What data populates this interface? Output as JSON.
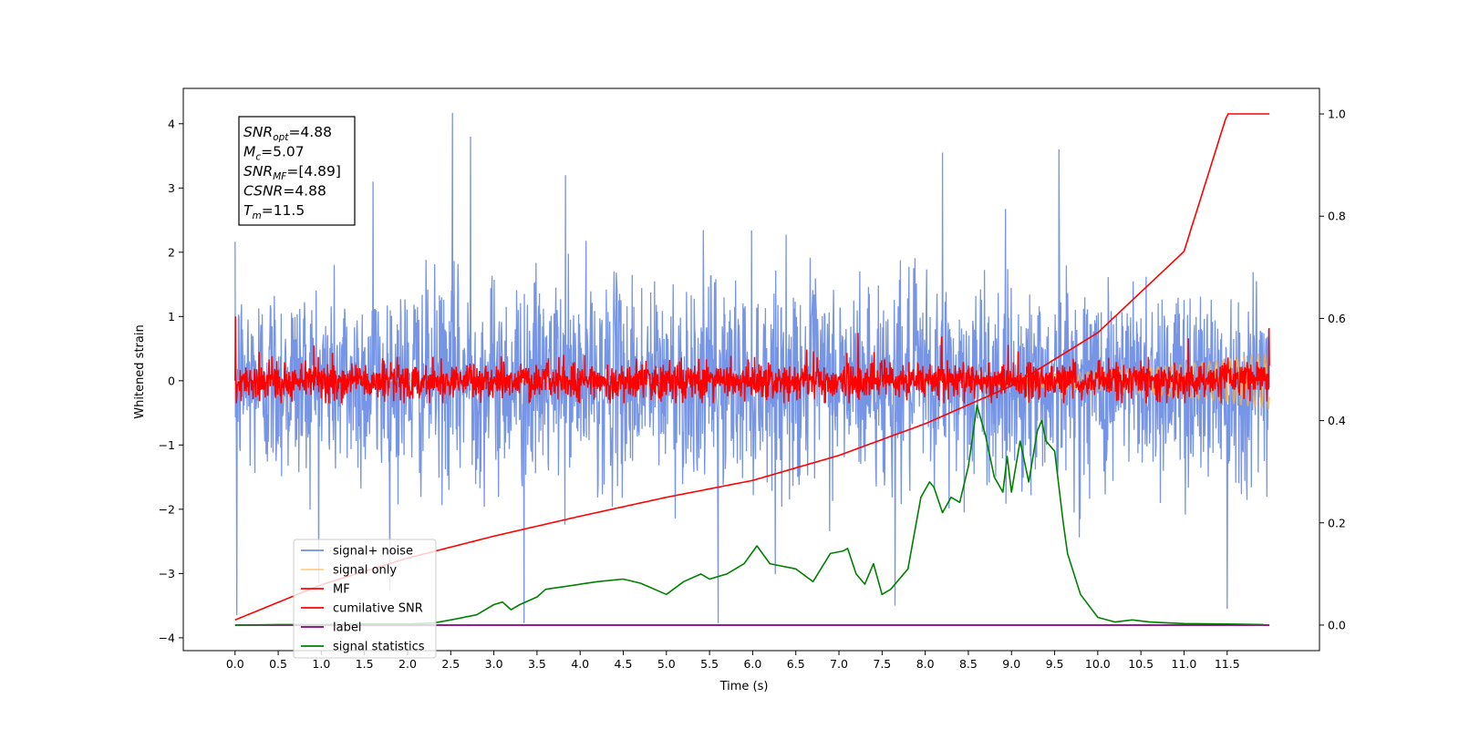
{
  "chart_data": {
    "type": "line",
    "xlabel": "Time (s)",
    "ylabel": "Whitened strain",
    "xlim": [
      -0.6,
      12.57
    ],
    "ylim": [
      -4.2,
      4.55
    ],
    "y2lim": [
      -0.05,
      1.05
    ],
    "xticks": [
      "0.0",
      "0.5",
      "1.0",
      "1.5",
      "2.0",
      "2.5",
      "3.0",
      "3.5",
      "4.0",
      "4.5",
      "5.0",
      "5.5",
      "6.0",
      "6.5",
      "7.0",
      "7.5",
      "8.0",
      "8.5",
      "9.0",
      "9.5",
      "10.0",
      "10.5",
      "11.0",
      "11.5"
    ],
    "xtick_values": [
      0,
      0.5,
      1,
      1.5,
      2,
      2.5,
      3,
      3.5,
      4,
      4.5,
      5,
      5.5,
      6,
      6.5,
      7,
      7.5,
      8,
      8.5,
      9,
      9.5,
      10,
      10.5,
      11,
      11.5
    ],
    "yticks": [
      "4",
      "3",
      "2",
      "1",
      "0",
      "−1",
      "−2",
      "−3",
      "−4"
    ],
    "ytick_values": [
      4,
      3,
      2,
      1,
      0,
      -1,
      -2,
      -3,
      -4
    ],
    "y2ticks": [
      "1.0",
      "0.8",
      "0.6",
      "0.4",
      "0.2",
      "0.0"
    ],
    "y2tick_values": [
      1.0,
      0.8,
      0.6,
      0.4,
      0.2,
      0.0
    ],
    "grid": false,
    "legend_position": "lower-left",
    "colors": {
      "signal_noise": "#6f8fe6",
      "signal_only": "#ffb040",
      "mf": "#ff0000",
      "cumulative": "#ff0000",
      "label": "#800080",
      "statistics": "#008000"
    },
    "series": [
      {
        "name": "signal+ noise",
        "axis": "left",
        "x_range": [
          0,
          11.99
        ],
        "mean": 0.0,
        "std": 0.78,
        "min": -3.77,
        "max": 4.17
      },
      {
        "name": "signal only",
        "axis": "left",
        "x_range": [
          0,
          11.99
        ],
        "max_abs": 0.45
      },
      {
        "name": "MF",
        "axis": "left",
        "x_range": [
          0,
          11.99
        ],
        "mean": 0.0,
        "range": [
          -0.35,
          1.0
        ]
      },
      {
        "name": "cumilative SNR",
        "axis": "right",
        "x": [
          0,
          1,
          2,
          3,
          4,
          5,
          6,
          7,
          8,
          9,
          10,
          11,
          11.5,
          11.99
        ],
        "y": [
          0.01,
          0.079,
          0.131,
          0.174,
          0.213,
          0.25,
          0.283,
          0.332,
          0.394,
          0.468,
          0.572,
          0.731,
          1.0,
          1.0
        ]
      },
      {
        "name": "label",
        "axis": "right",
        "x": [
          0,
          11.99
        ],
        "y": [
          0,
          0
        ]
      },
      {
        "name": "signal statistics",
        "axis": "right",
        "x": [
          0,
          0.5,
          1,
          1.5,
          2,
          2.3,
          2.5,
          2.8,
          3.0,
          3.1,
          3.2,
          3.3,
          3.5,
          3.6,
          3.8,
          4.0,
          4.2,
          4.5,
          4.7,
          5.0,
          5.2,
          5.4,
          5.5,
          5.7,
          5.9,
          6.05,
          6.2,
          6.5,
          6.7,
          6.9,
          7.05,
          7.1,
          7.2,
          7.3,
          7.4,
          7.5,
          7.6,
          7.8,
          7.95,
          8.05,
          8.1,
          8.2,
          8.3,
          8.4,
          8.5,
          8.6,
          8.7,
          8.8,
          8.9,
          8.95,
          9.0,
          9.1,
          9.2,
          9.3,
          9.35,
          9.4,
          9.5,
          9.6,
          9.65,
          9.8,
          10.0,
          10.2,
          10.4,
          10.6,
          11.0,
          11.5,
          11.92
        ],
        "y": [
          0,
          0.001,
          0.001,
          0.002,
          0.002,
          0.004,
          0.01,
          0.02,
          0.04,
          0.045,
          0.03,
          0.04,
          0.055,
          0.07,
          0.075,
          0.08,
          0.085,
          0.09,
          0.082,
          0.06,
          0.085,
          0.1,
          0.09,
          0.1,
          0.12,
          0.155,
          0.12,
          0.11,
          0.085,
          0.14,
          0.145,
          0.15,
          0.1,
          0.08,
          0.12,
          0.06,
          0.07,
          0.11,
          0.25,
          0.28,
          0.27,
          0.22,
          0.25,
          0.24,
          0.31,
          0.43,
          0.37,
          0.29,
          0.26,
          0.33,
          0.26,
          0.36,
          0.28,
          0.38,
          0.4,
          0.36,
          0.34,
          0.2,
          0.14,
          0.06,
          0.015,
          0.006,
          0.01,
          0.006,
          0.003,
          0.002,
          0.001
        ]
      }
    ],
    "annotation": {
      "lines": [
        {
          "var": "SNR",
          "sub": "opt",
          "value": "=4.88"
        },
        {
          "var": "M",
          "sub": "c",
          "value": "=5.07"
        },
        {
          "var": "SNR",
          "sub": "MF",
          "value": "=[4.89]"
        },
        {
          "var": "CSNR",
          "sub": "",
          "value": "=4.88"
        },
        {
          "var": "T",
          "sub": "m",
          "value": "=11.5"
        }
      ]
    }
  }
}
